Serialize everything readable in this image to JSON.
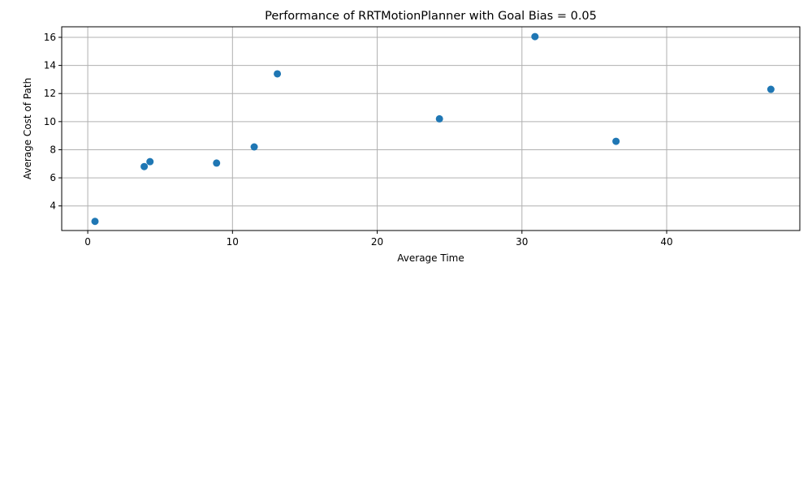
{
  "chart_data": {
    "type": "scatter",
    "title": "Performance of RRTMotionPlanner with Goal Bias = 0.05",
    "xlabel": "Average Time",
    "ylabel": "Average Cost of Path",
    "xlim": [
      -1.8,
      49.2
    ],
    "ylim": [
      2.25,
      16.75
    ],
    "xticks": [
      0,
      10,
      20,
      30,
      40
    ],
    "yticks": [
      4,
      6,
      8,
      10,
      12,
      14,
      16
    ],
    "grid": true,
    "marker_color": "#1f77b4",
    "points": [
      {
        "x": 0.5,
        "y": 2.9
      },
      {
        "x": 3.9,
        "y": 6.8
      },
      {
        "x": 4.3,
        "y": 7.15
      },
      {
        "x": 8.9,
        "y": 7.05
      },
      {
        "x": 11.5,
        "y": 8.2
      },
      {
        "x": 13.1,
        "y": 13.4
      },
      {
        "x": 24.3,
        "y": 10.2
      },
      {
        "x": 30.9,
        "y": 16.05
      },
      {
        "x": 36.5,
        "y": 8.6
      },
      {
        "x": 47.2,
        "y": 12.3
      }
    ]
  }
}
